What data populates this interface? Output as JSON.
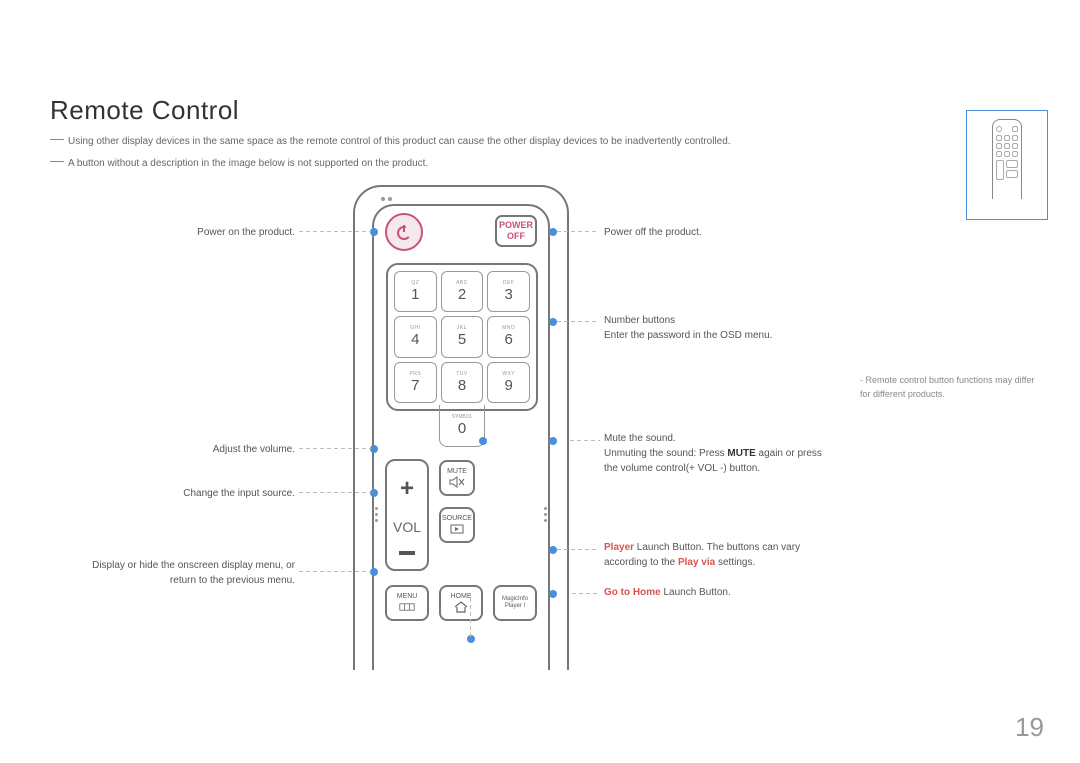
{
  "title": "Remote Control",
  "note1": "Using other display devices in the same space as the remote control of this product can cause the other display devices to be inadvertently controlled.",
  "note2": "A button without a description in the image below is not supported on the product.",
  "sidenote": "Remote control button functions may differ for different products.",
  "pagenum": "19",
  "buttons": {
    "poweroff_l1": "POWER",
    "poweroff_l2": "OFF",
    "vol": "VOL",
    "mute": "MUTE",
    "source": "SOURCE",
    "menu": "MENU",
    "home": "HOME",
    "magic_l1": "MagicInfo",
    "magic_l2": "Player I"
  },
  "numpad": [
    {
      "sub": "QZ",
      "num": "1"
    },
    {
      "sub": "ABC",
      "num": "2"
    },
    {
      "sub": "DEF",
      "num": "3"
    },
    {
      "sub": "GHI",
      "num": "4"
    },
    {
      "sub": "JKL",
      "num": "5"
    },
    {
      "sub": "MNO",
      "num": "6"
    },
    {
      "sub": "PRS",
      "num": "7"
    },
    {
      "sub": "TUV",
      "num": "8"
    },
    {
      "sub": "WXY",
      "num": "9"
    }
  ],
  "zero": {
    "sub": "SYMBOL",
    "num": "0"
  },
  "labels": {
    "power_on": "Power on the product.",
    "adjust_vol": "Adjust the volume.",
    "change_source": "Change the input source.",
    "menu_l1": "Display or hide the onscreen display menu, or",
    "menu_l2": "return to the previous menu.",
    "power_off": "Power off the product.",
    "number_l1": "Number buttons",
    "number_l2": "Enter the password in the OSD menu.",
    "mute_l1": "Mute the sound.",
    "mute_l2a": "Unmuting the sound: Press ",
    "mute_l2b": "MUTE",
    "mute_l2c": " again or press",
    "mute_l3": "the volume control(+ VOL -) button.",
    "player_l1a": "Player",
    "player_l1b": " Launch Button. The buttons can vary",
    "player_l2a": "according to the ",
    "player_l2b": "Play via",
    "player_l2c": " settings.",
    "home_a": "Go to Home",
    "home_b": " Launch Button."
  },
  "colors": {
    "accent": "#4a8fd8",
    "red": "#d9534f",
    "pink": "#c94f7c",
    "border": "#777"
  }
}
